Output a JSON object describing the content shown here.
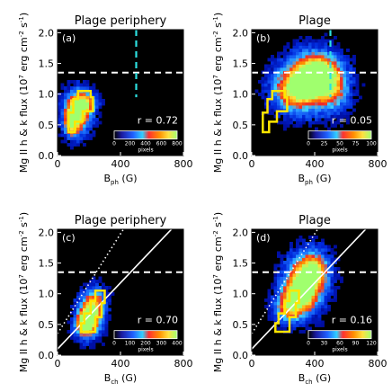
{
  "colors": {
    "background": "#00008b",
    "contour": "#ffe600",
    "threshold_line": "#ffffff",
    "vertical_line": "#2de0e0",
    "fit_line": "#ffffff"
  },
  "chart_data": [
    {
      "type": "heatmap",
      "panel_label": "(a)",
      "title": "Plage periphery",
      "xlabel": "B",
      "xlabel_sub": "ph",
      "xlabel_unit": " (G)",
      "ylabel": "Mg II h & k flux (10",
      "ylabel_sup": "7",
      "ylabel_mid": " erg cm",
      "ylabel_sup2": "-2",
      "ylabel_end": " s",
      "ylabel_sup3": "-1",
      "ylabel_close": ")",
      "xlim": [
        0,
        800
      ],
      "ylim": [
        0,
        2.05
      ],
      "xticks": [
        "0",
        "400",
        "800"
      ],
      "yticks": [
        "0.0",
        "0.5",
        "1.0",
        "1.5",
        "2.0"
      ],
      "correlation": "r = 0.72",
      "colorbar_ticks": [
        "0",
        "200",
        "400",
        "600",
        "800"
      ],
      "colorbar_unit": "pixels",
      "threshold_y": 1.35,
      "vertical_x": 500,
      "show_fit": false,
      "blobs": [
        [
          130,
          0.72,
          1.0,
          55,
          0.22
        ],
        [
          90,
          0.55,
          0.9,
          30,
          0.15
        ],
        [
          170,
          0.85,
          0.6,
          50,
          0.12
        ]
      ],
      "contour": [
        [
          70,
          0.38
        ],
        [
          110,
          0.38
        ],
        [
          110,
          0.55
        ],
        [
          160,
          0.55
        ],
        [
          160,
          0.72
        ],
        [
          225,
          0.72
        ],
        [
          225,
          0.95
        ],
        [
          210,
          0.95
        ],
        [
          210,
          1.05
        ],
        [
          130,
          1.05
        ],
        [
          130,
          0.92
        ],
        [
          100,
          0.92
        ],
        [
          100,
          0.7
        ],
        [
          70,
          0.7
        ]
      ]
    },
    {
      "type": "heatmap",
      "panel_label": "(b)",
      "title": "Plage",
      "xlabel": "B",
      "xlabel_sub": "ph",
      "xlabel_unit": " (G)",
      "ylabel": "Mg II h & k flux (10",
      "ylabel_sup": "7",
      "ylabel_mid": " erg cm",
      "ylabel_sup2": "-2",
      "ylabel_end": " s",
      "ylabel_sup3": "-1",
      "ylabel_close": ")",
      "xlim": [
        0,
        800
      ],
      "ylim": [
        0,
        2.05
      ],
      "xticks": [
        "0",
        "400",
        "800"
      ],
      "yticks": [
        "0.0",
        "0.5",
        "1.0",
        "1.5",
        "2.0"
      ],
      "correlation": "r = 0.05",
      "colorbar_ticks": [
        "0",
        "25",
        "50",
        "75",
        "100"
      ],
      "colorbar_unit": "pixels",
      "threshold_y": 1.35,
      "vertical_x": 500,
      "show_fit": false,
      "blobs": [
        [
          360,
          1.2,
          1.0,
          110,
          0.28
        ],
        [
          430,
          1.35,
          0.8,
          80,
          0.2
        ],
        [
          260,
          1.05,
          0.55,
          90,
          0.22
        ],
        [
          520,
          1.1,
          0.5,
          70,
          0.25
        ]
      ],
      "contour": [
        [
          70,
          0.38
        ],
        [
          110,
          0.38
        ],
        [
          110,
          0.55
        ],
        [
          160,
          0.55
        ],
        [
          160,
          0.72
        ],
        [
          225,
          0.72
        ],
        [
          225,
          0.95
        ],
        [
          210,
          0.95
        ],
        [
          210,
          1.05
        ],
        [
          130,
          1.05
        ],
        [
          130,
          0.92
        ],
        [
          100,
          0.92
        ],
        [
          100,
          0.7
        ],
        [
          70,
          0.7
        ]
      ]
    },
    {
      "type": "heatmap",
      "panel_label": "(c)",
      "title": "Plage periphery",
      "xlabel": "B",
      "xlabel_sub": "ch",
      "xlabel_unit": " (G)",
      "ylabel": "Mg II h & k flux (10",
      "ylabel_sup": "7",
      "ylabel_mid": " erg cm",
      "ylabel_sup2": "-2",
      "ylabel_end": " s",
      "ylabel_sup3": "-1",
      "ylabel_close": ")",
      "xlim": [
        0,
        800
      ],
      "ylim": [
        0,
        2.05
      ],
      "xticks": [
        "0",
        "400",
        "800"
      ],
      "yticks": [
        "0.0",
        "0.5",
        "1.0",
        "1.5",
        "2.0"
      ],
      "correlation": "r = 0.70",
      "colorbar_ticks": [
        "0",
        "100",
        "200",
        "300",
        "400"
      ],
      "colorbar_unit": "pixels",
      "threshold_y": 1.35,
      "vertical_x": null,
      "show_fit": true,
      "blobs": [
        [
          200,
          0.62,
          1.0,
          50,
          0.2
        ],
        [
          170,
          0.5,
          0.8,
          35,
          0.12
        ],
        [
          240,
          0.85,
          0.55,
          45,
          0.18
        ]
      ],
      "contour": [
        [
          150,
          0.38
        ],
        [
          240,
          0.38
        ],
        [
          240,
          0.62
        ],
        [
          280,
          0.62
        ],
        [
          280,
          0.85
        ],
        [
          300,
          0.85
        ],
        [
          300,
          1.05
        ],
        [
          240,
          1.05
        ],
        [
          240,
          0.88
        ],
        [
          210,
          0.88
        ],
        [
          210,
          0.68
        ],
        [
          170,
          0.68
        ],
        [
          170,
          0.52
        ],
        [
          150,
          0.52
        ]
      ]
    },
    {
      "type": "heatmap",
      "panel_label": "(d)",
      "title": "Plage",
      "xlabel": "B",
      "xlabel_sub": "ch",
      "xlabel_unit": " (G)",
      "ylabel": "Mg II h & k flux (10",
      "ylabel_sup": "7",
      "ylabel_mid": " erg cm",
      "ylabel_sup2": "-2",
      "ylabel_end": " s",
      "ylabel_sup3": "-1",
      "ylabel_close": ")",
      "xlim": [
        0,
        800
      ],
      "ylim": [
        0,
        2.05
      ],
      "xticks": [
        "0",
        "400",
        "800"
      ],
      "yticks": [
        "0.0",
        "0.5",
        "1.0",
        "1.5",
        "2.0"
      ],
      "correlation": "r = 0.16",
      "colorbar_ticks": [
        "0",
        "30",
        "60",
        "90",
        "120"
      ],
      "colorbar_unit": "pixels",
      "threshold_y": 1.35,
      "vertical_x": null,
      "show_fit": true,
      "blobs": [
        [
          340,
          1.2,
          1.0,
          80,
          0.28
        ],
        [
          290,
          0.95,
          0.75,
          70,
          0.2
        ],
        [
          400,
          1.4,
          0.6,
          60,
          0.2
        ],
        [
          230,
          0.75,
          0.55,
          55,
          0.15
        ]
      ],
      "contour": [
        [
          150,
          0.38
        ],
        [
          240,
          0.38
        ],
        [
          240,
          0.62
        ],
        [
          280,
          0.62
        ],
        [
          280,
          0.85
        ],
        [
          300,
          0.85
        ],
        [
          300,
          1.05
        ],
        [
          240,
          1.05
        ],
        [
          240,
          0.88
        ],
        [
          210,
          0.88
        ],
        [
          210,
          0.68
        ],
        [
          170,
          0.68
        ],
        [
          170,
          0.52
        ],
        [
          150,
          0.52
        ]
      ]
    }
  ]
}
